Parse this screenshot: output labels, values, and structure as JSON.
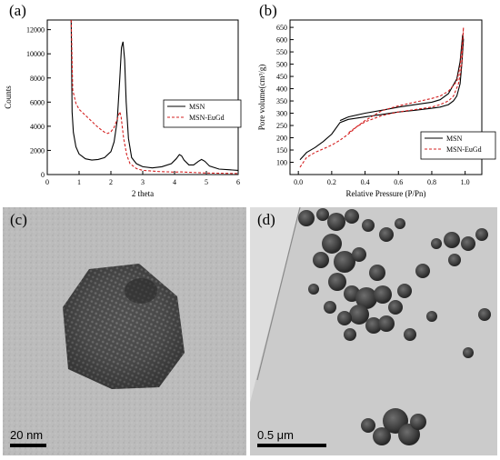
{
  "chart_data": [
    {
      "panel": "(a)",
      "type": "line",
      "title": "",
      "xlabel": "2 theta",
      "ylabel": "Counts",
      "xlim": [
        0,
        6
      ],
      "ylim": [
        0,
        12800
      ],
      "xticks": [
        0,
        1,
        2,
        3,
        4,
        5,
        6
      ],
      "yticks": [
        0,
        2000,
        4000,
        6000,
        8000,
        10000,
        12000
      ],
      "legend_position": "right",
      "series": [
        {
          "name": "MSN",
          "color": "#000000",
          "dash": "solid",
          "x": [
            0.75,
            0.78,
            0.82,
            0.9,
            1.0,
            1.2,
            1.4,
            1.6,
            1.8,
            2.0,
            2.1,
            2.2,
            2.28,
            2.33,
            2.38,
            2.43,
            2.48,
            2.55,
            2.65,
            2.8,
            3.0,
            3.3,
            3.6,
            3.9,
            4.05,
            4.15,
            4.22,
            4.3,
            4.45,
            4.6,
            4.75,
            4.85,
            4.95,
            5.1,
            5.4,
            5.7,
            6.0
          ],
          "y": [
            12800,
            5200,
            3500,
            2300,
            1700,
            1300,
            1200,
            1250,
            1400,
            1900,
            2700,
            4500,
            8000,
            10500,
            11000,
            9500,
            6000,
            3000,
            1400,
            900,
            650,
            550,
            650,
            900,
            1300,
            1650,
            1550,
            1200,
            800,
            800,
            1100,
            1250,
            1100,
            700,
            450,
            400,
            350
          ]
        },
        {
          "name": "MSN-EuGd",
          "color": "#d42020",
          "dash": "dashed",
          "x": [
            0.75,
            0.8,
            0.9,
            1.0,
            1.2,
            1.4,
            1.6,
            1.8,
            1.9,
            2.0,
            2.1,
            2.2,
            2.28,
            2.32,
            2.4,
            2.5,
            2.6,
            2.8,
            3.0,
            3.5,
            4.0,
            4.2,
            4.5,
            5.0,
            6.0
          ],
          "y": [
            12800,
            7000,
            5900,
            5400,
            4900,
            4400,
            3900,
            3500,
            3400,
            3550,
            3900,
            4600,
            5200,
            4800,
            3000,
            1600,
            900,
            500,
            350,
            250,
            200,
            220,
            180,
            130,
            80
          ]
        }
      ]
    },
    {
      "panel": "(b)",
      "type": "line",
      "title": "",
      "xlabel": "Relative Pressure (P/Pn)",
      "ylabel": "Pore volume(cm³/g)",
      "xlim": [
        -0.05,
        1.1
      ],
      "ylim": [
        50,
        680
      ],
      "xticks": [
        0.0,
        0.2,
        0.4,
        0.6,
        0.8,
        1.0
      ],
      "yticks": [
        100,
        150,
        200,
        250,
        300,
        350,
        400,
        450,
        500,
        550,
        600,
        650
      ],
      "legend_position": "bottom-right",
      "series": [
        {
          "name": "MSN",
          "color": "#000000",
          "dash": "solid",
          "x": [
            0.01,
            0.05,
            0.1,
            0.15,
            0.2,
            0.25,
            0.3,
            0.4,
            0.5,
            0.6,
            0.7,
            0.8,
            0.85,
            0.9,
            0.93,
            0.95,
            0.97,
            0.98,
            0.99,
            0.985,
            0.97,
            0.95,
            0.9,
            0.85,
            0.8,
            0.7,
            0.6,
            0.5,
            0.4,
            0.3,
            0.25
          ],
          "y": [
            110,
            140,
            160,
            185,
            215,
            262,
            275,
            285,
            295,
            305,
            312,
            320,
            325,
            335,
            350,
            370,
            420,
            500,
            600,
            620,
            510,
            440,
            380,
            355,
            345,
            335,
            325,
            312,
            300,
            285,
            270
          ]
        },
        {
          "name": "MSN-EuGd",
          "color": "#d42020",
          "dash": "dashed",
          "x": [
            0.01,
            0.05,
            0.1,
            0.15,
            0.2,
            0.25,
            0.3,
            0.35,
            0.4,
            0.5,
            0.6,
            0.7,
            0.8,
            0.85,
            0.9,
            0.93,
            0.96,
            0.98,
            0.99,
            0.985,
            0.97,
            0.95,
            0.9,
            0.85,
            0.8,
            0.7,
            0.6,
            0.5,
            0.4,
            0.3
          ],
          "y": [
            80,
            120,
            140,
            155,
            170,
            190,
            215,
            245,
            265,
            290,
            305,
            315,
            325,
            335,
            350,
            370,
            420,
            500,
            650,
            600,
            490,
            430,
            390,
            370,
            360,
            345,
            330,
            310,
            270,
            220
          ]
        }
      ]
    }
  ],
  "panels": {
    "a": {
      "letter": "(a)"
    },
    "b": {
      "letter": "(b)"
    },
    "c": {
      "letter": "(c)",
      "scale_label": "20 nm"
    },
    "d": {
      "letter": "(d)",
      "scale_label": "0.5 μm"
    }
  },
  "colors": {
    "msn": "#000000",
    "msn_eugd": "#d42020"
  }
}
